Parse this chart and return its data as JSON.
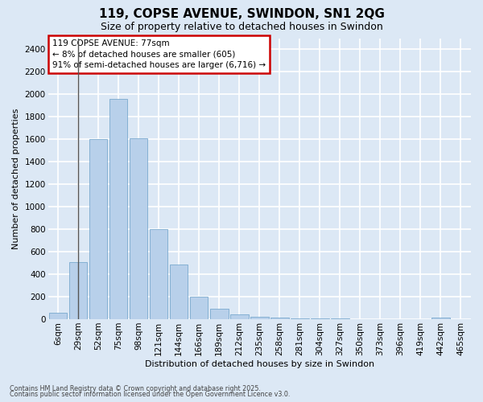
{
  "title1": "119, COPSE AVENUE, SWINDON, SN1 2QG",
  "title2": "Size of property relative to detached houses in Swindon",
  "xlabel": "Distribution of detached houses by size in Swindon",
  "ylabel": "Number of detached properties",
  "categories": [
    "6sqm",
    "29sqm",
    "52sqm",
    "75sqm",
    "98sqm",
    "121sqm",
    "144sqm",
    "166sqm",
    "189sqm",
    "212sqm",
    "235sqm",
    "258sqm",
    "281sqm",
    "304sqm",
    "327sqm",
    "350sqm",
    "373sqm",
    "396sqm",
    "419sqm",
    "442sqm",
    "465sqm"
  ],
  "values": [
    55,
    510,
    1600,
    1960,
    1610,
    800,
    490,
    200,
    90,
    40,
    25,
    18,
    10,
    7,
    5,
    3,
    2,
    1,
    0,
    12,
    0
  ],
  "bar_color": "#b8d0ea",
  "bar_edge_color": "#6a9fc8",
  "annotation_title": "119 COPSE AVENUE: 77sqm",
  "annotation_line1": "← 8% of detached houses are smaller (605)",
  "annotation_line2": "91% of semi-detached houses are larger (6,716) →",
  "annotation_box_color": "#ffffff",
  "annotation_box_edge": "#cc0000",
  "vline_bar_index": 1,
  "bg_color": "#dce8f5",
  "grid_color": "#ffffff",
  "footer1": "Contains HM Land Registry data © Crown copyright and database right 2025.",
  "footer2": "Contains public sector information licensed under the Open Government Licence v3.0.",
  "ylim": [
    0,
    2500
  ],
  "yticks": [
    0,
    200,
    400,
    600,
    800,
    1000,
    1200,
    1400,
    1600,
    1800,
    2000,
    2200,
    2400
  ],
  "title1_fontsize": 11,
  "title2_fontsize": 9,
  "xlabel_fontsize": 8,
  "ylabel_fontsize": 8,
  "tick_fontsize": 7.5,
  "annotation_fontsize": 7.5,
  "footer_fontsize": 5.8
}
